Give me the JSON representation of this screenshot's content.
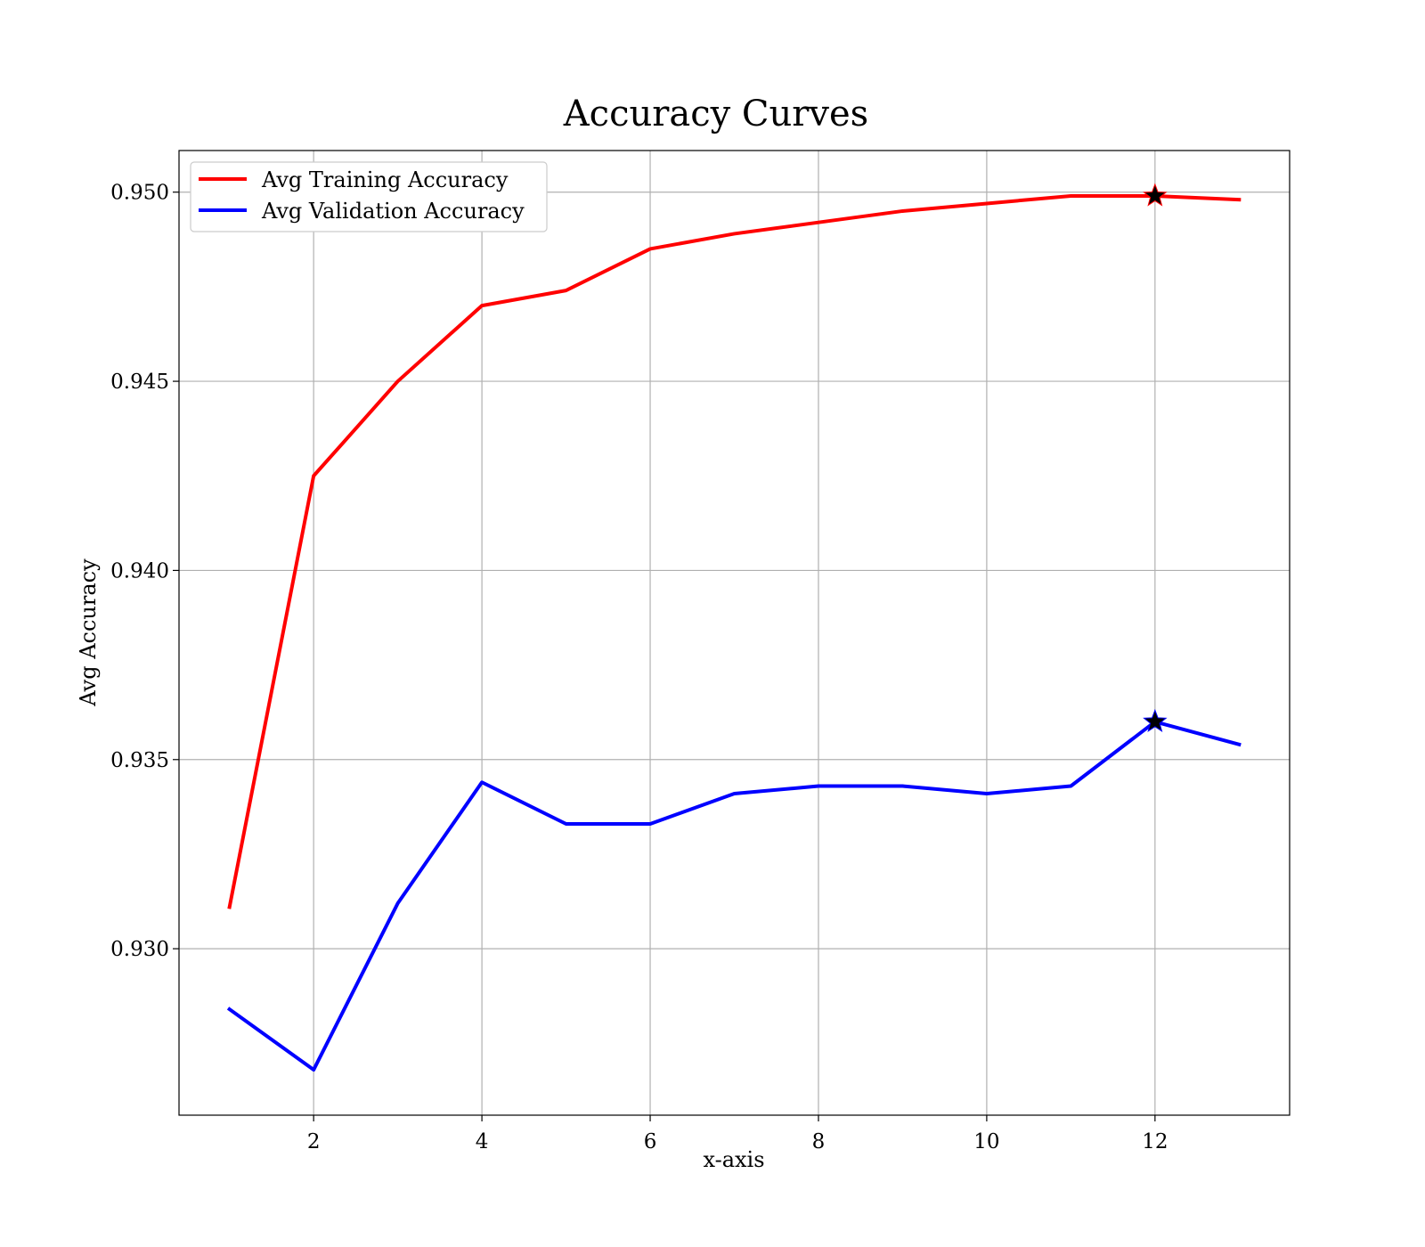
{
  "chart_data": {
    "type": "line",
    "title": "Accuracy Curves",
    "xlabel": "x-axis",
    "ylabel": "Avg Accuracy",
    "x": [
      1,
      2,
      3,
      4,
      5,
      6,
      7,
      8,
      9,
      10,
      11,
      12,
      13
    ],
    "xlim": [
      0.4,
      13.6
    ],
    "ylim": [
      0.9256,
      0.9511
    ],
    "xticks": [
      2,
      4,
      6,
      8,
      10,
      12
    ],
    "yticks": [
      0.93,
      0.935,
      0.94,
      0.945,
      0.95
    ],
    "xtick_labels": [
      "2",
      "4",
      "6",
      "8",
      "10",
      "12"
    ],
    "ytick_labels": [
      "0.930",
      "0.935",
      "0.940",
      "0.945",
      "0.950"
    ],
    "grid": true,
    "legend_position": "top-left",
    "series": [
      {
        "name": "Avg Training Accuracy",
        "color": "#ff0000",
        "values": [
          0.9311,
          0.9425,
          0.945,
          0.947,
          0.9474,
          0.9485,
          0.9489,
          0.9492,
          0.9495,
          0.9497,
          0.9499,
          0.9499,
          0.9498
        ],
        "best_marker": {
          "x": 12,
          "y": 0.9499,
          "shape": "star"
        }
      },
      {
        "name": "Avg Validation Accuracy",
        "color": "#0000ff",
        "values": [
          0.9284,
          0.9268,
          0.9312,
          0.9344,
          0.9333,
          0.9333,
          0.9341,
          0.9343,
          0.9343,
          0.9341,
          0.9343,
          0.936,
          0.9354
        ],
        "best_marker": {
          "x": 12,
          "y": 0.936,
          "shape": "star"
        }
      }
    ]
  }
}
